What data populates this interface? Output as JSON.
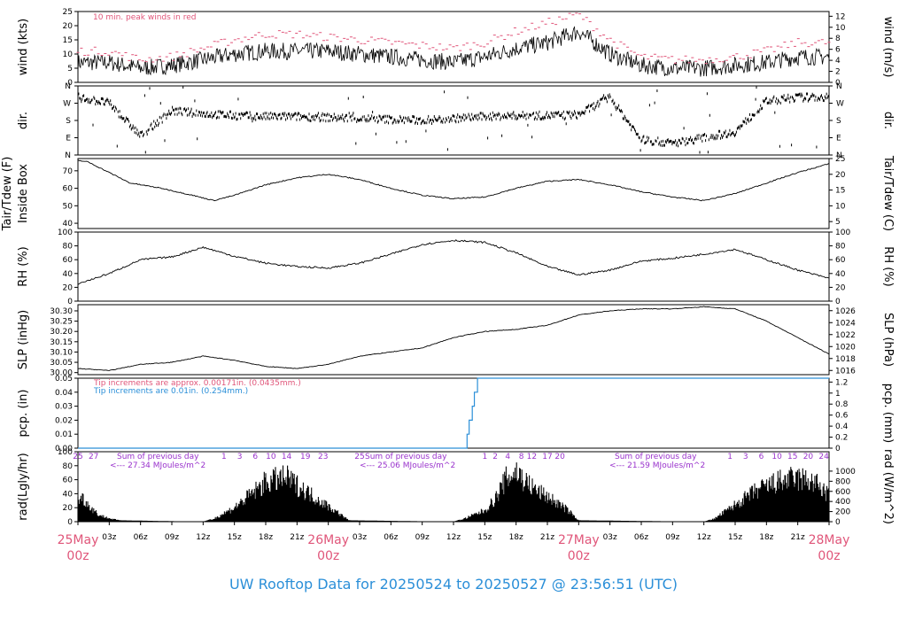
{
  "footer": "UW Rooftop Data for 20250524  to  20250527 @ 23:56:51  (UTC)",
  "colors": {
    "accent": "#e0567a",
    "footer": "#2b8fd8",
    "purple": "#9932cc",
    "pcp_pink": "#e0567a",
    "pcp_blue": "#2b8fd8"
  },
  "chart_data": [
    {
      "type": "line",
      "id": "wind",
      "ylabel": "wind (kts)",
      "ylabel_right": "wind (m/s)",
      "ylim": [
        0,
        25
      ],
      "yticks": [
        0,
        5,
        10,
        15,
        20,
        25
      ],
      "yticks_right": [
        0,
        2,
        4,
        6,
        8,
        10,
        12
      ],
      "annotation": "10 min. peak winds in red",
      "series": [
        {
          "hours": [
            0,
            3,
            6,
            9,
            12,
            15,
            18,
            21,
            24,
            27,
            30,
            33,
            36,
            39,
            42,
            45,
            48,
            51,
            54,
            57,
            60,
            63,
            66,
            69,
            72
          ],
          "values": [
            7,
            7,
            5,
            6,
            8,
            10,
            11,
            11,
            11,
            10,
            9,
            8,
            7,
            9,
            12,
            14,
            18,
            10,
            6,
            5,
            5,
            6,
            7,
            9,
            9
          ]
        },
        {
          "hours": [
            0,
            3,
            6,
            9,
            12,
            15,
            18,
            21,
            24,
            27,
            30,
            33,
            36,
            39,
            42,
            45,
            48,
            51,
            54,
            57,
            60,
            63,
            66,
            69,
            72
          ],
          "values": [
            11,
            11,
            8,
            9,
            12,
            15,
            17,
            17,
            16,
            15,
            14,
            13,
            12,
            14,
            18,
            21,
            24,
            15,
            9,
            8,
            8,
            9,
            11,
            14,
            14
          ]
        }
      ]
    },
    {
      "type": "scatter",
      "id": "dir",
      "ylabel": "dir.",
      "ylabel_right": "dir.",
      "yticks": [
        "N",
        "E",
        "S",
        "W",
        "N"
      ],
      "series": [
        {
          "hours": [
            0,
            3,
            6,
            9,
            12,
            15,
            18,
            21,
            24,
            27,
            30,
            33,
            36,
            39,
            42,
            45,
            48,
            51,
            54,
            57,
            60,
            63,
            66,
            69,
            72
          ],
          "values": [
            300,
            270,
            100,
            230,
            215,
            205,
            200,
            200,
            195,
            190,
            185,
            180,
            190,
            200,
            205,
            205,
            210,
            300,
            80,
            60,
            90,
            120,
            280,
            300,
            300
          ]
        }
      ]
    },
    {
      "type": "line",
      "id": "tair",
      "ylabel": "Inside Box",
      "ylabel_outer": "Tair/Tdew (F)",
      "ylabel_right": "Tair/Tdew (C)",
      "ylim": [
        37,
        77
      ],
      "yticks": [
        40,
        50,
        60,
        70
      ],
      "yticks_right": [
        5,
        10,
        15,
        20,
        25
      ],
      "series": [
        {
          "hours": [
            0,
            1,
            3,
            5,
            8,
            11,
            13,
            15,
            18,
            21,
            24,
            27,
            30,
            33,
            36,
            39,
            42,
            45,
            48,
            51,
            54,
            57,
            60,
            63,
            66,
            69,
            72
          ],
          "values": [
            76,
            75,
            69,
            63,
            60,
            56,
            53,
            56,
            62,
            66,
            68,
            65,
            60,
            56,
            54,
            55,
            60,
            64,
            65,
            62,
            58,
            55,
            53,
            57,
            63,
            69,
            74
          ]
        }
      ]
    },
    {
      "type": "line",
      "id": "rh",
      "ylabel": "RH (%)",
      "ylabel_right": "RH (%)",
      "ylim": [
        0,
        100
      ],
      "yticks": [
        0,
        20,
        40,
        60,
        80,
        100
      ],
      "yticks_right": [
        0,
        20,
        40,
        60,
        80,
        100
      ],
      "series": [
        {
          "hours": [
            0,
            3,
            6,
            9,
            12,
            15,
            18,
            21,
            24,
            27,
            30,
            33,
            36,
            39,
            42,
            45,
            48,
            51,
            54,
            57,
            60,
            63,
            66,
            69,
            72
          ],
          "values": [
            25,
            40,
            60,
            64,
            78,
            65,
            55,
            50,
            48,
            55,
            68,
            82,
            88,
            85,
            70,
            50,
            38,
            45,
            58,
            62,
            68,
            75,
            60,
            45,
            33
          ]
        }
      ]
    },
    {
      "type": "line",
      "id": "slp",
      "ylabel": "SLP (inHg)",
      "ylabel_right": "SLP (hPa)",
      "ylim": [
        29.99,
        30.33
      ],
      "yticks": [
        30.0,
        30.05,
        30.1,
        30.15,
        30.2,
        30.25,
        30.3
      ],
      "yticks_right": [
        1016,
        1018,
        1020,
        1022,
        1024,
        1026
      ],
      "series": [
        {
          "hours": [
            0,
            3,
            6,
            9,
            12,
            15,
            18,
            21,
            24,
            27,
            30,
            33,
            36,
            39,
            42,
            45,
            48,
            51,
            54,
            57,
            60,
            63,
            66,
            69,
            72
          ],
          "values": [
            30.02,
            30.01,
            30.04,
            30.05,
            30.08,
            30.06,
            30.03,
            30.02,
            30.04,
            30.08,
            30.1,
            30.12,
            30.17,
            30.2,
            30.21,
            30.23,
            30.28,
            30.3,
            30.31,
            30.31,
            30.32,
            30.31,
            30.25,
            30.17,
            30.09
          ]
        }
      ]
    },
    {
      "type": "line",
      "id": "pcp",
      "ylabel": "pcp. (in)",
      "ylabel_right": "pcp. (mm)",
      "ylim": [
        0,
        0.05
      ],
      "yticks": [
        0.0,
        0.01,
        0.02,
        0.03,
        0.04,
        0.05
      ],
      "yticks_right": [
        0,
        0.2,
        0.4,
        0.6,
        0.8,
        1,
        1.2
      ],
      "notes": [
        "Tip increments are approx. 0.00171in. (0.0435mm.)",
        "Tip increments are 0.01in. (0.254mm.)"
      ],
      "series": [
        {
          "hours": [
            0,
            37,
            37.3,
            37.5,
            37.8,
            38,
            38.3,
            72
          ],
          "values": [
            0,
            0,
            0.01,
            0.02,
            0.03,
            0.04,
            0.05,
            0.05
          ]
        }
      ]
    },
    {
      "type": "area",
      "id": "rad",
      "ylabel": "rad(Lgly/hr)",
      "ylabel_right": "rad (W/m^2)",
      "ylim": [
        0,
        100
      ],
      "yticks": [
        0,
        20,
        40,
        60,
        80,
        100
      ],
      "yticks_right": [
        0,
        200,
        400,
        600,
        800,
        1000
      ],
      "annotations": [
        "Sum of previous day",
        "<--- 27.34 MJoules/m^2",
        "Sum of previous day",
        "<--- 25.06 MJoules/m^2",
        "Sum of previous day",
        "<--- 21.59 MJoules/m^2"
      ],
      "hour_marks": [
        {
          "label": "25",
          "hour": 0
        },
        {
          "label": "27",
          "hour": 1.5
        },
        {
          "label": "1",
          "hour": 14
        },
        {
          "label": "3",
          "hour": 15.5
        },
        {
          "label": "6",
          "hour": 17
        },
        {
          "label": "10",
          "hour": 18.5
        },
        {
          "label": "14",
          "hour": 20
        },
        {
          "label": "19",
          "hour": 21.8
        },
        {
          "label": "23",
          "hour": 23.5
        },
        {
          "label": "25",
          "hour": 27
        },
        {
          "label": "1",
          "hour": 39
        },
        {
          "label": "2",
          "hour": 40
        },
        {
          "label": "4",
          "hour": 41.2
        },
        {
          "label": "8",
          "hour": 42.5
        },
        {
          "label": "12",
          "hour": 43.5
        },
        {
          "label": "17",
          "hour": 45
        },
        {
          "label": "20",
          "hour": 46.2
        },
        {
          "label": "1",
          "hour": 62.5
        },
        {
          "label": "3",
          "hour": 64
        },
        {
          "label": "6",
          "hour": 65.5
        },
        {
          "label": "10",
          "hour": 67
        },
        {
          "label": "15",
          "hour": 68.5
        },
        {
          "label": "20",
          "hour": 70
        },
        {
          "label": "24",
          "hour": 71.5
        }
      ],
      "series": [
        {
          "hours": [
            0,
            0.5,
            1,
            2,
            3,
            4,
            12,
            13,
            15,
            17,
            18,
            19,
            20,
            21,
            23,
            25,
            26,
            36,
            37,
            39,
            40,
            41,
            42,
            43,
            44,
            45,
            47,
            48,
            60,
            61,
            63,
            65,
            67,
            68,
            69,
            70,
            71,
            72
          ],
          "values": [
            40,
            42,
            30,
            12,
            6,
            2,
            0,
            5,
            25,
            55,
            70,
            75,
            78,
            65,
            40,
            15,
            2,
            0,
            5,
            20,
            40,
            75,
            90,
            70,
            55,
            45,
            20,
            2,
            0,
            5,
            30,
            55,
            70,
            75,
            76,
            74,
            65,
            45
          ]
        }
      ]
    },
    {
      "type": "axis",
      "id": "time_axis",
      "ticks": [
        "03z",
        "06z",
        "09z",
        "12z",
        "15z",
        "18z",
        "21z",
        "03z",
        "06z",
        "09z",
        "12z",
        "15z",
        "18z",
        "21z",
        "03z",
        "06z",
        "09z",
        "12z",
        "15z",
        "18z",
        "21z"
      ],
      "date_labels": [
        [
          "25May",
          "00z"
        ],
        [
          "26May",
          "00z"
        ],
        [
          "27May",
          "00z"
        ],
        [
          "28May",
          "00z"
        ]
      ]
    }
  ]
}
